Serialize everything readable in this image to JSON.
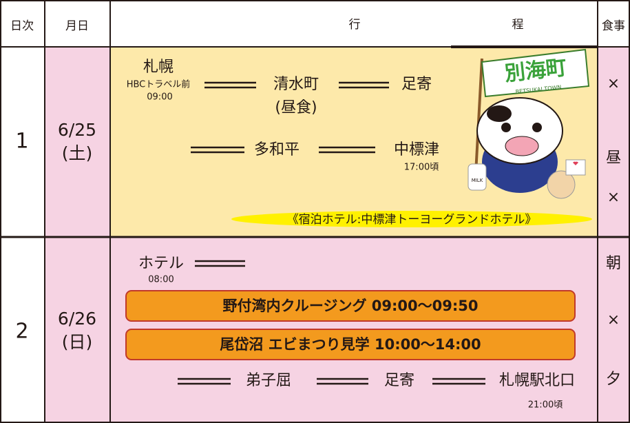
{
  "header": {
    "day": "日次",
    "date": "月日",
    "itinerary_1": "行",
    "itinerary_2": "程",
    "meals": "食事"
  },
  "days": [
    {
      "day": "1",
      "date": "6/25",
      "weekday": "(土)",
      "stops": [
        {
          "name": "札幌",
          "place": "HBCトラベル前",
          "time": "09:00"
        },
        {
          "name": "清水町",
          "note": "(昼食)"
        },
        {
          "name": "足寄"
        },
        {
          "name": "多和平"
        },
        {
          "name": "中標津",
          "time": "17:00頃"
        }
      ],
      "lodging": "《宿泊ホテル:中標津トーヨーグランドホテル》",
      "meals": [
        "×",
        "昼",
        "×"
      ]
    },
    {
      "day": "2",
      "date": "6/26",
      "weekday": "(日)",
      "stops": [
        {
          "name": "ホテル",
          "time": "08:00"
        },
        {
          "name": "弟子屈"
        },
        {
          "name": "足寄"
        },
        {
          "name": "札幌駅北口",
          "time": "21:00頃"
        }
      ],
      "activities": [
        "野付湾内クルージング 09:00～09:50",
        "尾岱沼 エビまつり見学 10:00～14:00"
      ],
      "meals": [
        "朝",
        "×",
        "夕"
      ]
    }
  ],
  "illustration": {
    "flag": "別海町",
    "flag_sub": "BETSUKAI TOWN",
    "bottle": "MILK"
  }
}
